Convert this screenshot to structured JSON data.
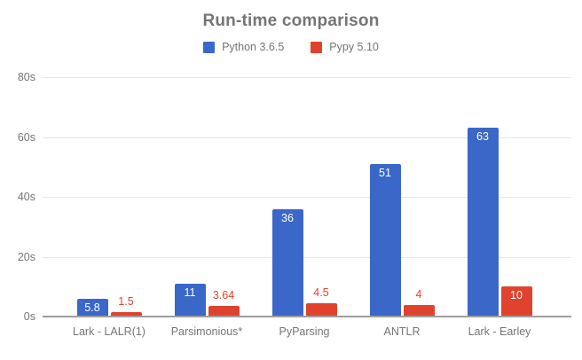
{
  "chart_data": {
    "type": "bar",
    "title": "Run-time comparison",
    "categories": [
      "Lark - LALR(1)",
      "Parsimonious*",
      "PyParsing",
      "ANTLR",
      "Lark - Earley"
    ],
    "series": [
      {
        "name": "Python 3.6.5",
        "color": "#3a67c8",
        "values": [
          5.8,
          11,
          36,
          51,
          63
        ]
      },
      {
        "name": "Pypy 5.10",
        "color": "#e0432d",
        "values": [
          1.5,
          3.64,
          4.5,
          4,
          10
        ]
      }
    ],
    "xlabel": "",
    "ylabel": "",
    "ylim": [
      0,
      80
    ],
    "ytick_labels": [
      "0s",
      "20s",
      "40s",
      "60s",
      "80s"
    ],
    "ytick_values": [
      0,
      20,
      40,
      60,
      80
    ],
    "grid": true,
    "legend_position": "top",
    "value_labels": "inside bars in white when bar is tall enough, otherwise above bar in series color"
  },
  "colors": {
    "background": "#ffffff",
    "title_text": "#757575",
    "axis_text": "#757575",
    "gridline": "#e6e6e6",
    "baseline": "#9e9e9e",
    "value_label_inside": "#ffffff"
  }
}
